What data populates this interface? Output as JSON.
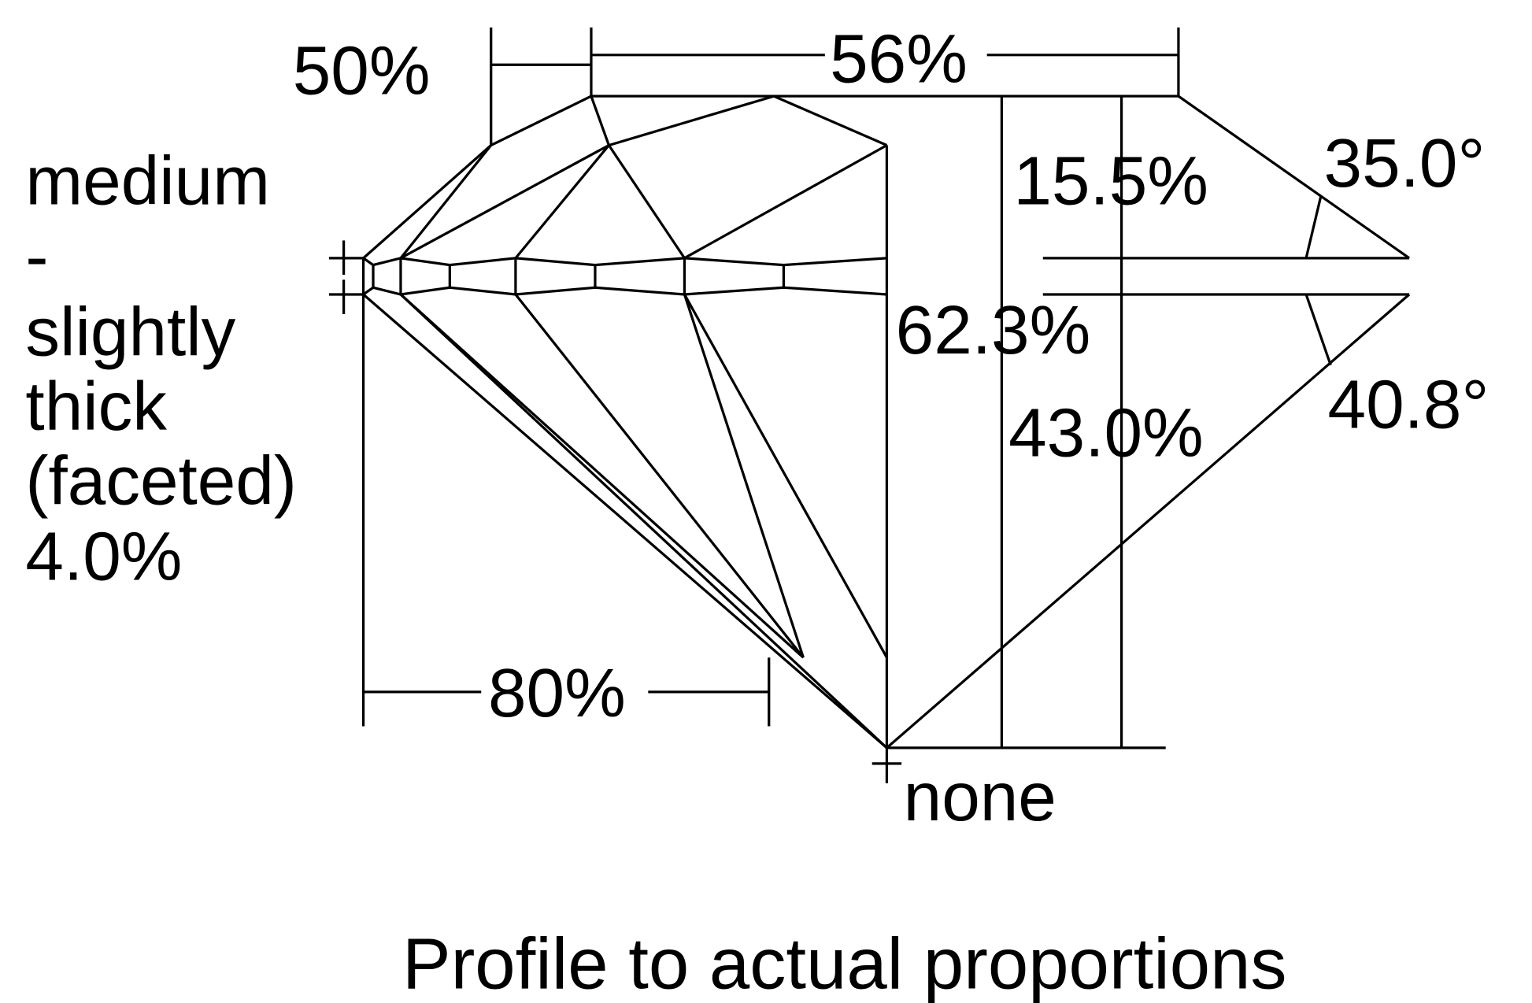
{
  "labels": {
    "crown_height_pct_star": "50%",
    "table_pct": "56%",
    "girdle_line1": "medium",
    "girdle_line2": "-",
    "girdle_line3": "slightly",
    "girdle_line4": "thick",
    "girdle_line5": "(faceted)",
    "girdle_pct": "4.0%",
    "crown_height_pct": "15.5%",
    "crown_angle": "35.0°",
    "total_depth_pct": "62.3%",
    "pavilion_angle": "40.8°",
    "pavilion_depth_pct": "43.0%",
    "lower_half_pct": "80%",
    "culet": "none"
  },
  "title": "Profile to actual proportions",
  "colors": {
    "line": "#000000",
    "background": "#ffffff"
  }
}
